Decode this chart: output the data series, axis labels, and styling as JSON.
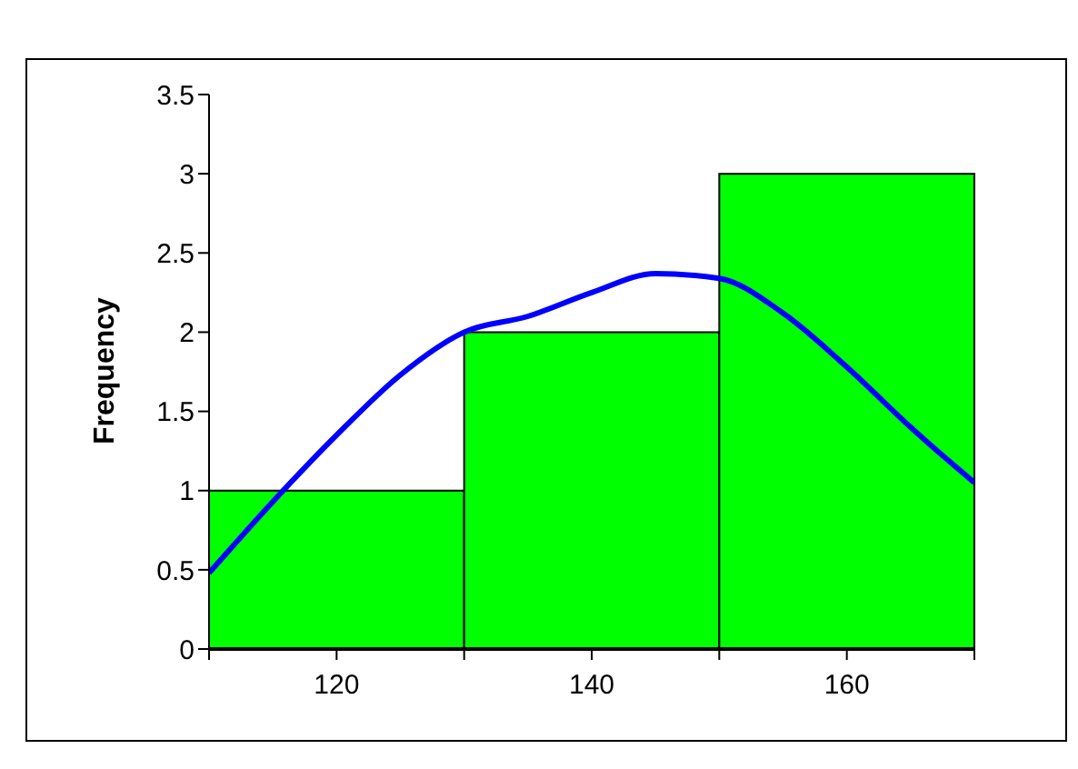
{
  "chart_data": {
    "type": "histogram",
    "ylabel": "Frequency",
    "bins": [
      110,
      130,
      150,
      170
    ],
    "values": [
      1,
      2,
      3
    ],
    "color": "#00ff00",
    "xlim": [
      110,
      170
    ],
    "xticks": [
      {
        "value": 110,
        "label": null
      },
      120,
      {
        "value": 130,
        "label": null
      },
      140,
      {
        "value": 150,
        "label": null
      },
      160,
      {
        "value": 170,
        "label": null
      }
    ],
    "ylim": [
      0,
      3.5
    ],
    "yticks": [
      0,
      0.5,
      1,
      1.5,
      2,
      2.5,
      3,
      3.5
    ],
    "grid": false,
    "legend": false,
    "series": [
      {
        "type": "line",
        "color": "#0000ff",
        "x": [
          110,
          115,
          120,
          125,
          130,
          135,
          140,
          145,
          150,
          155,
          160,
          165,
          170
        ],
        "values": [
          0.48,
          0.93,
          1.35,
          1.73,
          2.0,
          2.1,
          2.25,
          2.37,
          2.34,
          2.12,
          1.78,
          1.4,
          1.05
        ]
      }
    ]
  }
}
